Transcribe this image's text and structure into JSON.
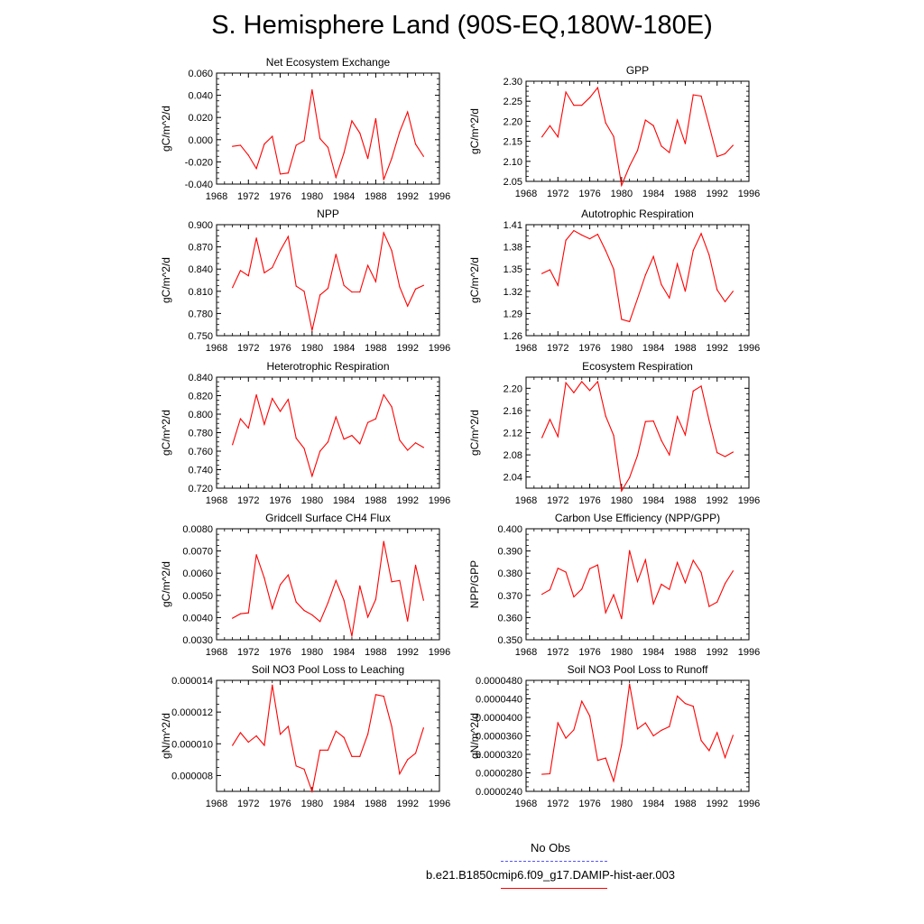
{
  "title": "S. Hemisphere Land (90S-EQ,180W-180E)",
  "colors": {
    "model": "#ff0000",
    "obs": "#5555ff",
    "axis": "#000000"
  },
  "years": [
    1970,
    1971,
    1972,
    1973,
    1974,
    1975,
    1976,
    1977,
    1978,
    1979,
    1980,
    1981,
    1982,
    1983,
    1984,
    1985,
    1986,
    1987,
    1988,
    1989,
    1990,
    1991,
    1992,
    1993,
    1994
  ],
  "legend": {
    "obs_label": "No Obs",
    "model_label": "b.e21.B1850cmip6.f09_g17.DAMIP-hist-aer.003"
  },
  "chart_data": [
    {
      "type": "line",
      "title": "Net Ecosystem Exchange",
      "xlabel": "",
      "ylabel": "gC/m^2/d",
      "xlim": [
        1968,
        1996
      ],
      "xticks": [
        1968,
        1972,
        1976,
        1980,
        1984,
        1988,
        1992,
        1996
      ],
      "ylim": [
        -0.04,
        0.06
      ],
      "yticks": [
        "-0.040",
        "-0.020",
        "0.000",
        "0.020",
        "0.040",
        "0.060"
      ],
      "series": [
        {
          "values": [
            -0.006,
            -0.005,
            -0.014,
            -0.026,
            -0.004,
            0.003,
            -0.031,
            -0.03,
            -0.005,
            -0.001,
            0.045,
            0.001,
            -0.007,
            -0.034,
            -0.012,
            0.017,
            0.006,
            -0.017,
            0.019,
            -0.036,
            -0.017,
            0.007,
            0.025,
            -0.004,
            -0.015
          ]
        }
      ]
    },
    {
      "type": "line",
      "title": "GPP",
      "xlabel": "",
      "ylabel": "gC/m^2/d",
      "xlim": [
        1968,
        1996
      ],
      "xticks": [
        1968,
        1972,
        1976,
        1980,
        1984,
        1988,
        1992,
        1996
      ],
      "ylim": [
        2.05,
        2.3
      ],
      "yticks": [
        "2.05",
        "2.10",
        "2.15",
        "2.20",
        "2.25",
        "2.30"
      ],
      "series": [
        {
          "values": [
            2.161,
            2.189,
            2.161,
            2.273,
            2.24,
            2.24,
            2.259,
            2.284,
            2.196,
            2.162,
            2.04,
            2.088,
            2.127,
            2.203,
            2.189,
            2.138,
            2.122,
            2.203,
            2.144,
            2.266,
            2.263,
            2.189,
            2.112,
            2.119,
            2.14
          ]
        }
      ]
    },
    {
      "type": "line",
      "title": "NPP",
      "xlabel": "",
      "ylabel": "gC/m^2/d",
      "xlim": [
        1968,
        1996
      ],
      "xticks": [
        1968,
        1972,
        1976,
        1980,
        1984,
        1988,
        1992,
        1996
      ],
      "ylim": [
        0.75,
        0.9
      ],
      "yticks": [
        "0.750",
        "0.780",
        "0.810",
        "0.840",
        "0.870",
        "0.900"
      ],
      "series": [
        {
          "values": [
            0.815,
            0.838,
            0.831,
            0.882,
            0.835,
            0.842,
            0.865,
            0.884,
            0.817,
            0.81,
            0.757,
            0.805,
            0.814,
            0.86,
            0.818,
            0.809,
            0.809,
            0.845,
            0.823,
            0.889,
            0.865,
            0.816,
            0.79,
            0.813,
            0.818
          ]
        }
      ]
    },
    {
      "type": "line",
      "title": "Autotrophic Respiration",
      "xlabel": "",
      "ylabel": "gC/m^2/d",
      "xlim": [
        1968,
        1996
      ],
      "xticks": [
        1968,
        1972,
        1976,
        1980,
        1984,
        1988,
        1992,
        1996
      ],
      "ylim": [
        1.26,
        1.41
      ],
      "yticks": [
        "1.26",
        "1.29",
        "1.32",
        "1.35",
        "1.38",
        "1.41"
      ],
      "series": [
        {
          "values": [
            1.344,
            1.349,
            1.328,
            1.389,
            1.402,
            1.396,
            1.391,
            1.397,
            1.375,
            1.35,
            1.282,
            1.279,
            1.31,
            1.342,
            1.367,
            1.329,
            1.311,
            1.357,
            1.32,
            1.375,
            1.398,
            1.369,
            1.322,
            1.306,
            1.32
          ]
        }
      ]
    },
    {
      "type": "line",
      "title": "Heterotrophic Respiration",
      "xlabel": "",
      "ylabel": "gC/m^2/d",
      "xlim": [
        1968,
        1996
      ],
      "xticks": [
        1968,
        1972,
        1976,
        1980,
        1984,
        1988,
        1992,
        1996
      ],
      "ylim": [
        0.72,
        0.84
      ],
      "yticks": [
        "0.720",
        "0.740",
        "0.760",
        "0.780",
        "0.800",
        "0.820",
        "0.840"
      ],
      "series": [
        {
          "values": [
            0.767,
            0.795,
            0.785,
            0.821,
            0.789,
            0.817,
            0.803,
            0.816,
            0.774,
            0.763,
            0.733,
            0.76,
            0.77,
            0.797,
            0.773,
            0.777,
            0.768,
            0.791,
            0.795,
            0.821,
            0.808,
            0.772,
            0.761,
            0.769,
            0.764
          ]
        }
      ]
    },
    {
      "type": "line",
      "title": "Ecosystem Respiration",
      "xlabel": "",
      "ylabel": "gC/m^2/d",
      "xlim": [
        1968,
        1996
      ],
      "xticks": [
        1968,
        1972,
        1976,
        1980,
        1984,
        1988,
        1992,
        1996
      ],
      "ylim": [
        2.02,
        2.22
      ],
      "yticks": [
        "2.04",
        "2.08",
        "2.12",
        "2.16",
        "2.20"
      ],
      "series": [
        {
          "values": [
            2.111,
            2.144,
            2.113,
            2.21,
            2.192,
            2.212,
            2.196,
            2.212,
            2.15,
            2.115,
            2.015,
            2.039,
            2.079,
            2.14,
            2.141,
            2.106,
            2.08,
            2.149,
            2.116,
            2.195,
            2.204,
            2.142,
            2.084,
            2.077,
            2.085
          ]
        }
      ]
    },
    {
      "type": "line",
      "title": "Gridcell Surface CH4 Flux",
      "xlabel": "",
      "ylabel": "gC/m^2/d",
      "xlim": [
        1968,
        1996
      ],
      "xticks": [
        1968,
        1972,
        1976,
        1980,
        1984,
        1988,
        1992,
        1996
      ],
      "ylim": [
        0.003,
        0.008
      ],
      "yticks": [
        "0.0030",
        "0.0040",
        "0.0050",
        "0.0060",
        "0.0070",
        "0.0080"
      ],
      "series": [
        {
          "values": [
            0.00397,
            0.00417,
            0.00421,
            0.00683,
            0.00578,
            0.0044,
            0.00548,
            0.00592,
            0.0047,
            0.00432,
            0.00412,
            0.00382,
            0.00467,
            0.00567,
            0.00478,
            0.00316,
            0.00543,
            0.00402,
            0.00482,
            0.00743,
            0.00561,
            0.00567,
            0.00384,
            0.00636,
            0.00478
          ]
        }
      ]
    },
    {
      "type": "line",
      "title": "Carbon Use Efficiency (NPP/GPP)",
      "xlabel": "",
      "ylabel": "NPP/GPP",
      "xlim": [
        1968,
        1996
      ],
      "xticks": [
        1968,
        1972,
        1976,
        1980,
        1984,
        1988,
        1992,
        1996
      ],
      "ylim": [
        0.35,
        0.4
      ],
      "yticks": [
        "0.350",
        "0.360",
        "0.370",
        "0.380",
        "0.390",
        "0.400"
      ],
      "series": [
        {
          "values": [
            0.3705,
            0.3725,
            0.3822,
            0.3805,
            0.3693,
            0.3728,
            0.382,
            0.3837,
            0.3622,
            0.3703,
            0.3595,
            0.3902,
            0.3762,
            0.386,
            0.3662,
            0.375,
            0.3727,
            0.3848,
            0.3757,
            0.3858,
            0.3803,
            0.365,
            0.367,
            0.3753,
            0.381
          ]
        }
      ]
    },
    {
      "type": "line",
      "title": "Soil NO3 Pool Loss to Leaching",
      "xlabel": "",
      "ylabel": "gN/m^2/d",
      "xlim": [
        1968,
        1996
      ],
      "xticks": [
        1968,
        1972,
        1976,
        1980,
        1984,
        1988,
        1992,
        1996
      ],
      "ylim": [
        7e-06,
        1.4e-05
      ],
      "yticks": [
        "0.000008",
        "0.000010",
        "0.000012",
        "0.000014"
      ],
      "series": [
        {
          "values": [
            9.9e-06,
            1.07e-05,
            1.01e-05,
            1.05e-05,
            9.9e-06,
            1.37e-05,
            1.06e-05,
            1.11e-05,
            8.6e-06,
            8.4e-06,
            7e-06,
            9.6e-06,
            9.6e-06,
            1.08e-05,
            1.04e-05,
            9.2e-06,
            9.2e-06,
            1.06e-05,
            1.31e-05,
            1.3e-05,
            1.11e-05,
            8.1e-06,
            9e-06,
            9.4e-06,
            1.1e-05
          ]
        }
      ]
    },
    {
      "type": "line",
      "title": "Soil NO3 Pool Loss to Runoff",
      "xlabel": "",
      "ylabel": "gN/m^2/d",
      "xlim": [
        1968,
        1996
      ],
      "xticks": [
        1968,
        1972,
        1976,
        1980,
        1984,
        1988,
        1992,
        1996
      ],
      "ylim": [
        2.4e-05,
        4.8e-05
      ],
      "yticks": [
        "0.0000240",
        "0.0000280",
        "0.0000320",
        "0.0000360",
        "0.0000400",
        "0.0000440",
        "0.0000480"
      ],
      "series": [
        {
          "values": [
            2.77e-05,
            2.78e-05,
            3.88e-05,
            3.55e-05,
            3.73e-05,
            4.35e-05,
            4.03e-05,
            3.07e-05,
            3.12e-05,
            2.62e-05,
            3.4e-05,
            4.72e-05,
            3.75e-05,
            3.88e-05,
            3.6e-05,
            3.72e-05,
            3.8e-05,
            4.46e-05,
            4.3e-05,
            4.24e-05,
            3.5e-05,
            3.28e-05,
            3.67e-05,
            3.13e-05,
            3.61e-05
          ]
        }
      ]
    }
  ]
}
